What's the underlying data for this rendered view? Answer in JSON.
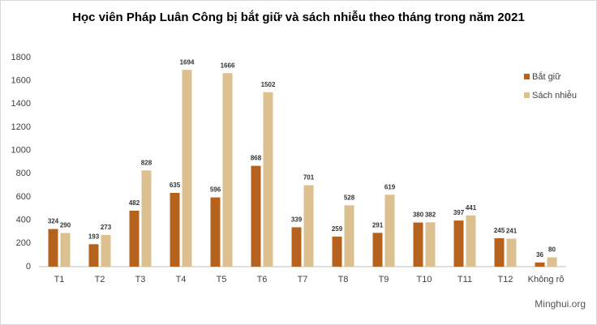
{
  "chart_data": {
    "type": "bar",
    "title": "Học viên Pháp Luân Công bị bắt giữ và sách nhiễu theo tháng trong năm 2021",
    "categories": [
      "T1",
      "T2",
      "T3",
      "T4",
      "T5",
      "T6",
      "T7",
      "T8",
      "T9",
      "T10",
      "T11",
      "T12",
      "Không rõ"
    ],
    "series": [
      {
        "name": "Bắt giữ",
        "color": "#b5621e",
        "values": [
          324,
          193,
          482,
          635,
          596,
          868,
          339,
          259,
          291,
          380,
          397,
          245,
          36
        ]
      },
      {
        "name": "Sách nhiễu",
        "color": "#dcc08f",
        "values": [
          290,
          273,
          828,
          1694,
          1666,
          1502,
          701,
          528,
          619,
          382,
          441,
          241,
          80
        ]
      }
    ],
    "ylim": [
      0,
      1800
    ],
    "yticks": [
      0,
      200,
      400,
      600,
      800,
      1000,
      1200,
      1400,
      1600,
      1800
    ],
    "grid": false,
    "legend": "right",
    "data_labels": true,
    "watermark": "Minghui.org"
  }
}
